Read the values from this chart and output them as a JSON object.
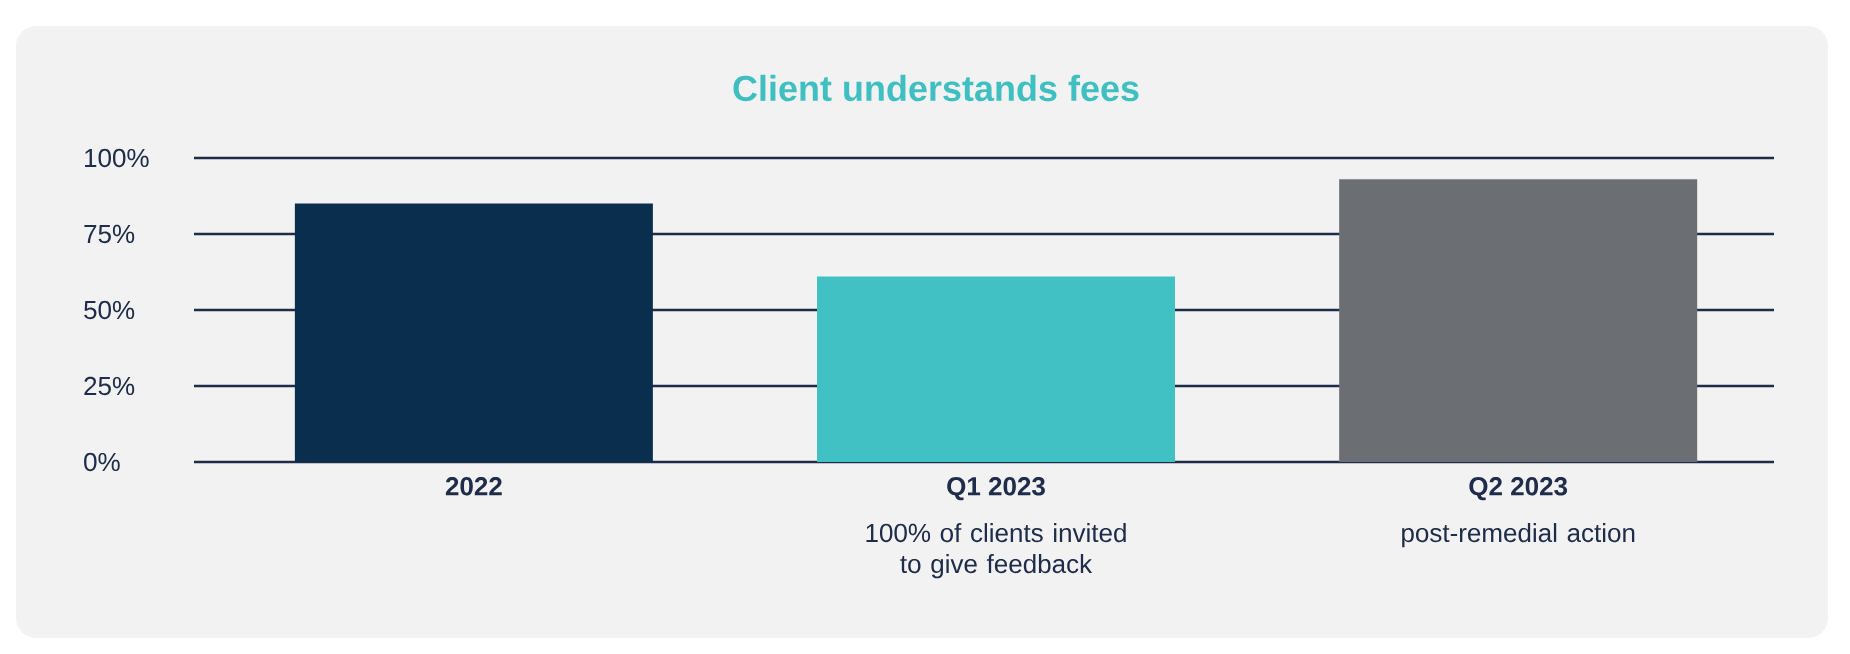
{
  "chart_data": {
    "type": "bar",
    "title": "Client understands fees",
    "categories": [
      "2022",
      "Q1 2023",
      "Q2 2023"
    ],
    "values": [
      85,
      61,
      93
    ],
    "colors": [
      "#0a2e4d",
      "#41c1c3",
      "#6b6e73"
    ],
    "ylim": [
      0,
      100
    ],
    "yticks": [
      {
        "value": 0,
        "label": "0%"
      },
      {
        "value": 25,
        "label": "25%"
      },
      {
        "value": 50,
        "label": "50%"
      },
      {
        "value": 75,
        "label": "75%"
      },
      {
        "value": 100,
        "label": "100%"
      }
    ],
    "grid": "y",
    "annotations": [
      "100% of clients invited to give feedback",
      "post-remedial action"
    ]
  }
}
